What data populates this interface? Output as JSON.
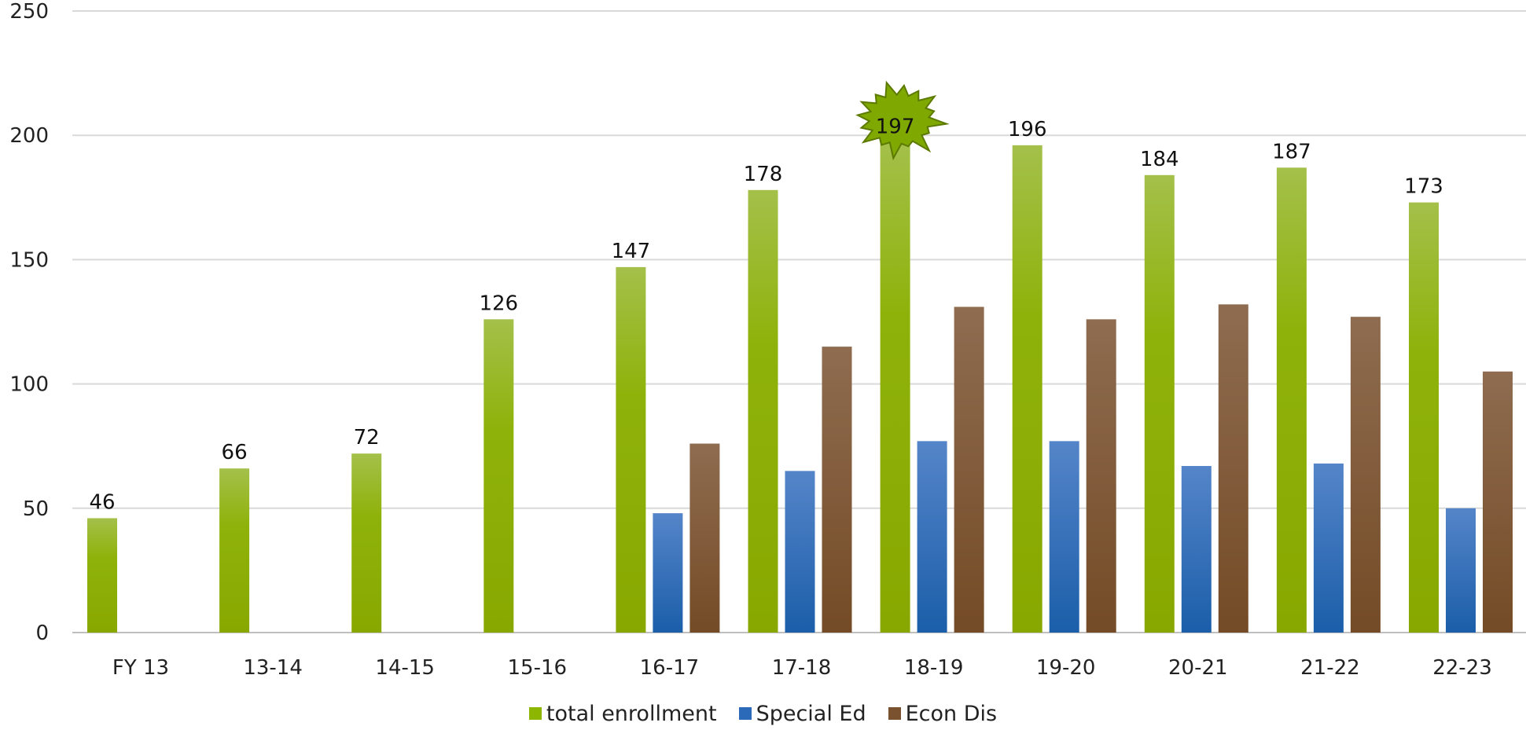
{
  "chart_data": {
    "type": "bar",
    "categories": [
      "FY 13",
      "13-14",
      "14-15",
      "15-16",
      "16-17",
      "17-18",
      "18-19",
      "19-20",
      "20-21",
      "21-22",
      "22-23"
    ],
    "series": [
      {
        "name": "total enrollment",
        "color": "#8db600",
        "values": [
          46,
          66,
          72,
          126,
          147,
          178,
          197,
          196,
          184,
          187,
          173
        ],
        "labels_shown": true
      },
      {
        "name": "Special Ed",
        "color": "#2a6ab8",
        "values": [
          null,
          null,
          null,
          null,
          48,
          65,
          77,
          77,
          67,
          68,
          50
        ],
        "labels_shown": false
      },
      {
        "name": "Econ Dis",
        "color": "#7a5230",
        "values": [
          null,
          null,
          null,
          null,
          76,
          115,
          131,
          126,
          132,
          127,
          105
        ],
        "labels_shown": false
      }
    ],
    "data_labels": [
      "46",
      "66",
      "72",
      "126",
      "147",
      "178",
      "197",
      "196",
      "184",
      "187",
      "173"
    ],
    "y_ticks": [
      "0",
      "50",
      "100",
      "150",
      "200",
      "250"
    ],
    "ylim": [
      0,
      250
    ],
    "grid": true,
    "legend_position": "bottom",
    "highlight": {
      "category": "18-19",
      "shape": "starburst",
      "color": "#7fa800"
    }
  }
}
